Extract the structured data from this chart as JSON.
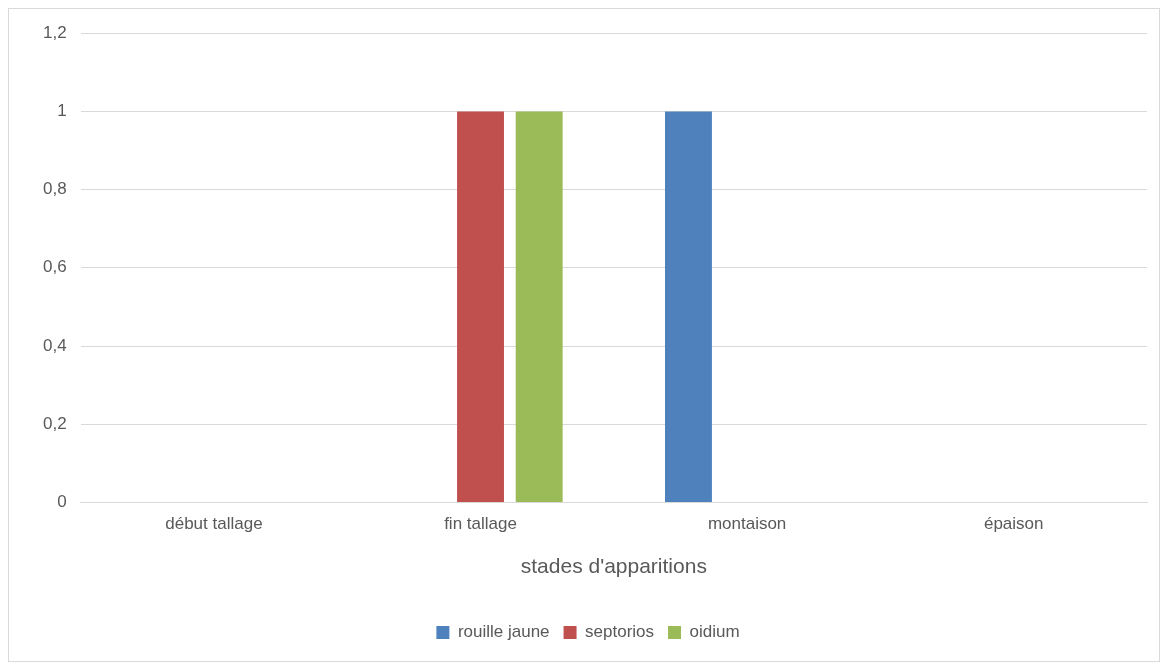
{
  "chart_data": {
    "type": "bar",
    "xlabel": "stades d'apparitions",
    "categories": [
      "début tallage",
      "fin tallage",
      "montaison",
      "épaison"
    ],
    "series": [
      {
        "name": "rouille jaune",
        "color": "#4f81bd",
        "values": [
          0,
          0,
          1,
          0
        ]
      },
      {
        "name": "septorios",
        "color": "#c0504d",
        "values": [
          0,
          1,
          0,
          0
        ]
      },
      {
        "name": "oidium",
        "color": "#9bbb59",
        "values": [
          0,
          1,
          0,
          0
        ]
      }
    ],
    "ylim": [
      0,
      1.2
    ],
    "yticks": [
      0,
      {
        "value": 0.2,
        "label": "0,2"
      },
      {
        "value": 0.4,
        "label": "0,4"
      },
      {
        "value": 0.6,
        "label": "0,6"
      },
      {
        "value": 0.8,
        "label": "0,8"
      },
      1,
      {
        "value": 1.2,
        "label": "1,2"
      }
    ],
    "grid": "y",
    "legend": "bottom"
  }
}
